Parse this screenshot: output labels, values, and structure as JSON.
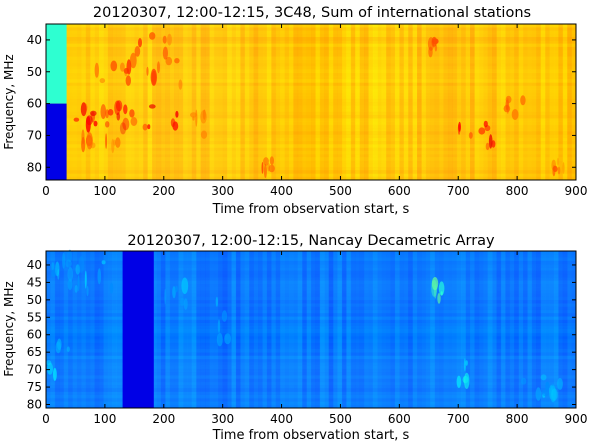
{
  "chart_data": [
    {
      "type": "heatmap",
      "title": "20120307, 12:00-12:15, 3C48, Sum of international stations",
      "xlabel": "Time from observation start, s",
      "ylabel": "Frequency, MHz",
      "xlim": [
        0,
        900
      ],
      "ylim": [
        84,
        35
      ],
      "xticks": [
        0,
        100,
        200,
        300,
        400,
        500,
        600,
        700,
        800,
        900
      ],
      "yticks": [
        40,
        50,
        60,
        70,
        80
      ],
      "colormap": "jet",
      "background_level": 0.68,
      "flagged_regions": [
        {
          "x": [
            0,
            35
          ],
          "y": [
            35,
            60
          ],
          "level": 0.42
        },
        {
          "x": [
            0,
            35
          ],
          "y": [
            60,
            84
          ],
          "level": 0.1
        }
      ],
      "features": [
        {
          "x": [
            80,
            230
          ],
          "y": [
            37,
            55
          ],
          "level": 0.85
        },
        {
          "x": [
            50,
            230
          ],
          "y": [
            60,
            68
          ],
          "level": 0.9
        },
        {
          "x": [
            60,
            130
          ],
          "y": [
            70,
            74
          ],
          "level": 0.82
        },
        {
          "x": [
            250,
            280
          ],
          "y": [
            63,
            70
          ],
          "level": 0.8
        },
        {
          "x": [
            360,
            390
          ],
          "y": [
            77,
            82
          ],
          "level": 0.82
        },
        {
          "x": [
            650,
            670
          ],
          "y": [
            37,
            44
          ],
          "level": 0.85
        },
        {
          "x": [
            700,
            760
          ],
          "y": [
            66,
            74
          ],
          "level": 0.9
        },
        {
          "x": [
            780,
            810
          ],
          "y": [
            58,
            64
          ],
          "level": 0.8
        },
        {
          "x": [
            860,
            880
          ],
          "y": [
            78,
            82
          ],
          "level": 0.8
        }
      ]
    },
    {
      "type": "heatmap",
      "title": "20120307, 12:00-12:15, Nancay Decametric Array",
      "xlabel": "Time from observation start, s",
      "ylabel": "Frequency, MHz",
      "xlim": [
        0,
        900
      ],
      "ylim": [
        81,
        36
      ],
      "xticks": [
        0,
        100,
        200,
        300,
        400,
        500,
        600,
        700,
        800,
        900
      ],
      "yticks": [
        40,
        45,
        50,
        55,
        60,
        65,
        70,
        75,
        80
      ],
      "colormap": "jet",
      "background_level": 0.24,
      "flagged_regions": [
        {
          "x": [
            130,
            183
          ],
          "y": [
            36,
            81
          ],
          "level": 0.1
        }
      ],
      "features": [
        {
          "x": [
            0,
            120
          ],
          "y": [
            36,
            48
          ],
          "level": 0.34
        },
        {
          "x": [
            0,
            40
          ],
          "y": [
            62,
            72
          ],
          "level": 0.36
        },
        {
          "x": [
            200,
            240
          ],
          "y": [
            44,
            56
          ],
          "level": 0.34
        },
        {
          "x": [
            280,
            320
          ],
          "y": [
            50,
            62
          ],
          "level": 0.32
        },
        {
          "x": [
            655,
            675
          ],
          "y": [
            44,
            50
          ],
          "level": 0.48
        },
        {
          "x": [
            700,
            720
          ],
          "y": [
            68,
            74
          ],
          "level": 0.4
        },
        {
          "x": [
            800,
            880
          ],
          "y": [
            72,
            78
          ],
          "level": 0.34
        }
      ]
    }
  ]
}
